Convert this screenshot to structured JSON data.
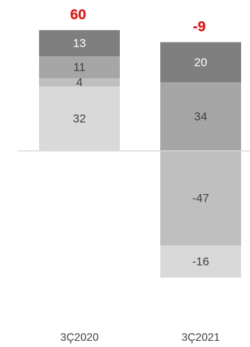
{
  "chart_data": {
    "type": "bar",
    "stacked": true,
    "categories": [
      "3Ç2020",
      "3Ç2021"
    ],
    "series": [
      {
        "values": [
          32,
          -47
        ],
        "colors": [
          "#d9d9d9",
          "#bfbfbf"
        ]
      },
      {
        "values": [
          4,
          -16
        ],
        "colors": [
          "#bfbfbf",
          "#d9d9d9"
        ]
      },
      {
        "values": [
          11,
          34
        ],
        "colors": [
          "#a6a6a6",
          "#a6a6a6"
        ]
      },
      {
        "values": [
          13,
          20
        ],
        "colors": [
          "#7f7f7f",
          "#7f7f7f"
        ]
      }
    ],
    "totals": [
      60,
      -9
    ],
    "total_labels": [
      "60",
      "-9"
    ],
    "segment_label_colors": {
      "dark": "#404040",
      "light": "#ffffff"
    },
    "total_label_color": "#ff0000",
    "axis_line_color": "#d9d9d9",
    "title": "",
    "xlabel": "",
    "ylabel": "",
    "grid": false,
    "legend": "none"
  }
}
